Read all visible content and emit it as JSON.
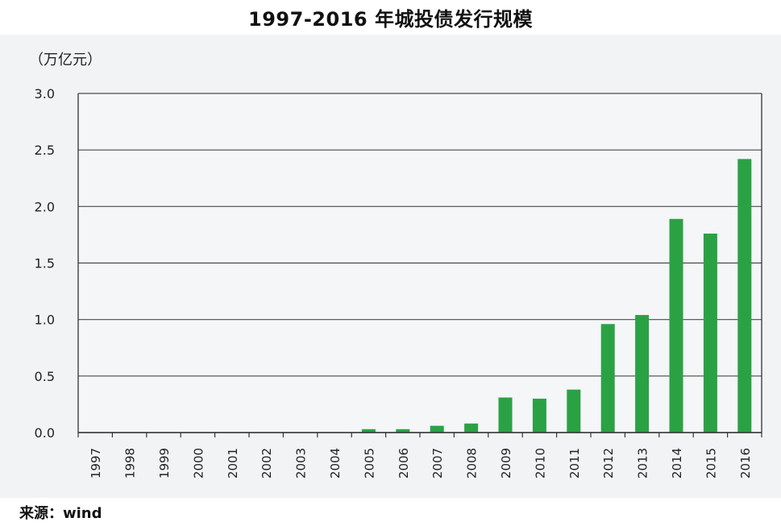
{
  "chart_data": {
    "type": "bar",
    "title": "1997-2016 年城投债发行规模",
    "unit_label": "（万亿元）",
    "xlabel": "",
    "ylabel": "",
    "categories": [
      "1997",
      "1998",
      "1999",
      "2000",
      "2001",
      "2002",
      "2003",
      "2004",
      "2005",
      "2006",
      "2007",
      "2008",
      "2009",
      "2010",
      "2011",
      "2012",
      "2013",
      "2014",
      "2015",
      "2016"
    ],
    "series": [
      {
        "values": [
          0,
          0,
          0,
          0,
          0,
          0,
          0,
          0,
          0.03,
          0.03,
          0.06,
          0.08,
          0.31,
          0.3,
          0.38,
          0.96,
          1.04,
          1.89,
          1.76,
          2.42
        ]
      }
    ],
    "ylim": [
      0,
      3.0
    ],
    "yticks": [
      "0.0",
      "0.5",
      "1.0",
      "1.5",
      "2.0",
      "2.5",
      "3.0"
    ],
    "grid": true,
    "bar_color": "#2aa244",
    "source": "来源：wind"
  }
}
